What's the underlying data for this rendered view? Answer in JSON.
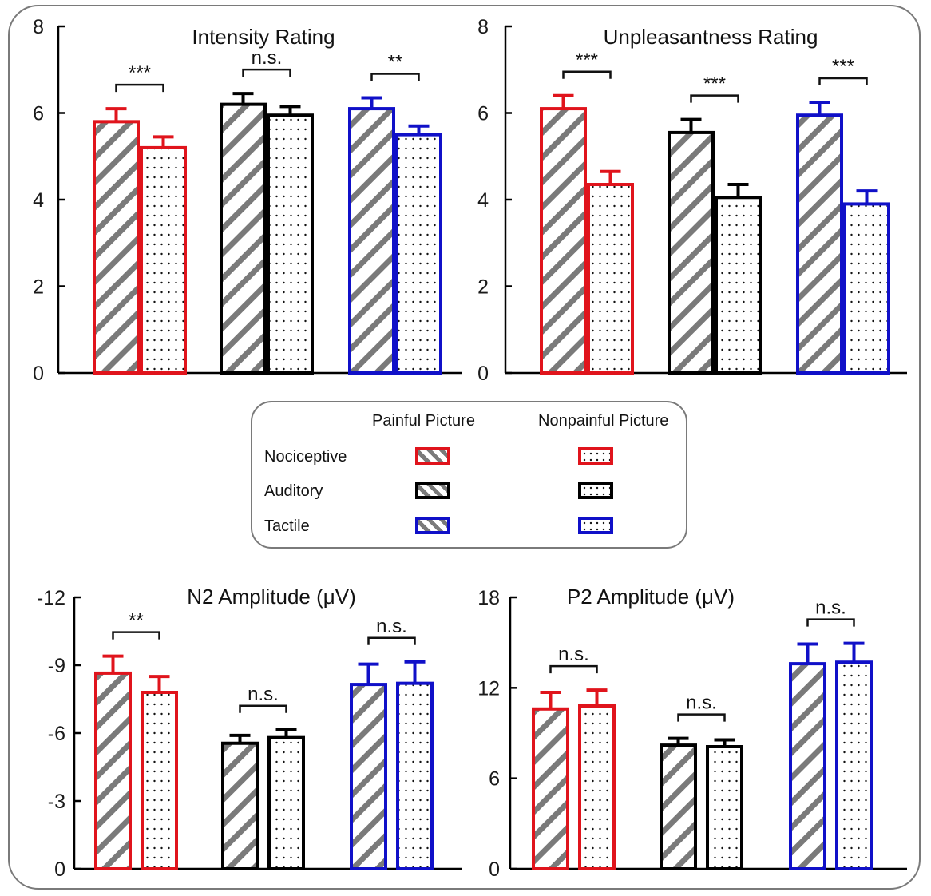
{
  "colors": {
    "nociceptive": "#e0141c",
    "auditory": "#000000",
    "tactile": "#1010c8",
    "hatch": "#7a7a7a",
    "frame": "#7a7a7a"
  },
  "legend": {
    "column_headers": [
      "Painful Picture",
      "Nonpainful Picture"
    ],
    "rows": [
      {
        "label": "Nociceptive",
        "color_key": "nociceptive"
      },
      {
        "label": "Auditory",
        "color_key": "auditory"
      },
      {
        "label": "Tactile",
        "color_key": "tactile"
      }
    ],
    "patterns": {
      "painful": "diagonal-hatch",
      "nonpainful": "dots"
    }
  },
  "chart_data": [
    {
      "type": "bar",
      "title": "Intensity Rating",
      "categories": [
        "Nociceptive",
        "Auditory",
        "Tactile"
      ],
      "series": [
        {
          "name": "Painful Picture",
          "values": [
            5.8,
            6.2,
            6.1
          ],
          "errors": [
            0.3,
            0.25,
            0.25
          ]
        },
        {
          "name": "Nonpainful Picture",
          "values": [
            5.2,
            5.95,
            5.5
          ],
          "errors": [
            0.25,
            0.2,
            0.2
          ]
        }
      ],
      "significance": [
        "***",
        "n.s.",
        "**"
      ],
      "yticks": [
        0,
        2,
        4,
        6,
        8
      ],
      "ytick_labels": [
        "0",
        "2",
        "4",
        "6",
        "8"
      ],
      "ylim": [
        0,
        8
      ],
      "xlabel": "",
      "ylabel": "",
      "grid": false
    },
    {
      "type": "bar",
      "title": "Unpleasantness Rating",
      "categories": [
        "Nociceptive",
        "Auditory",
        "Tactile"
      ],
      "series": [
        {
          "name": "Painful Picture",
          "values": [
            6.1,
            5.55,
            5.95
          ],
          "errors": [
            0.3,
            0.3,
            0.3
          ]
        },
        {
          "name": "Nonpainful Picture",
          "values": [
            4.35,
            4.05,
            3.9
          ],
          "errors": [
            0.3,
            0.3,
            0.3
          ]
        }
      ],
      "significance": [
        "***",
        "***",
        "***"
      ],
      "yticks": [
        0,
        2,
        4,
        6,
        8
      ],
      "ytick_labels": [
        "0",
        "2",
        "4",
        "6",
        "8"
      ],
      "ylim": [
        0,
        8
      ],
      "xlabel": "",
      "ylabel": "",
      "grid": false
    },
    {
      "type": "bar",
      "title": "N2 Amplitude (μV)",
      "categories": [
        "Nociceptive",
        "Auditory",
        "Tactile"
      ],
      "series": [
        {
          "name": "Painful Picture",
          "values": [
            -8.65,
            -5.55,
            -8.15
          ],
          "errors": [
            0.75,
            0.35,
            0.9
          ]
        },
        {
          "name": "Nonpainful Picture",
          "values": [
            -7.8,
            -5.8,
            -8.2
          ],
          "errors": [
            0.7,
            0.35,
            0.95
          ]
        }
      ],
      "significance": [
        "**",
        "n.s.",
        "n.s."
      ],
      "yticks": [
        0,
        -3,
        -6,
        -9,
        -12
      ],
      "ytick_labels": [
        "0",
        "-3",
        "-6",
        "-9",
        "-12"
      ],
      "ylim": [
        0,
        -12
      ],
      "inverted_y": true,
      "xlabel": "",
      "ylabel": "",
      "grid": false
    },
    {
      "type": "bar",
      "title": "P2 Amplitude (μV)",
      "categories": [
        "Nociceptive",
        "Auditory",
        "Tactile"
      ],
      "series": [
        {
          "name": "Painful Picture",
          "values": [
            10.6,
            8.2,
            13.6
          ],
          "errors": [
            1.1,
            0.45,
            1.3
          ]
        },
        {
          "name": "Nonpainful Picture",
          "values": [
            10.8,
            8.1,
            13.7
          ],
          "errors": [
            1.05,
            0.45,
            1.25
          ]
        }
      ],
      "significance": [
        "n.s.",
        "n.s.",
        "n.s."
      ],
      "yticks": [
        0,
        6,
        12,
        18
      ],
      "ytick_labels": [
        "0",
        "6",
        "12",
        "18"
      ],
      "ylim": [
        0,
        18
      ],
      "xlabel": "",
      "ylabel": "",
      "grid": false
    }
  ]
}
